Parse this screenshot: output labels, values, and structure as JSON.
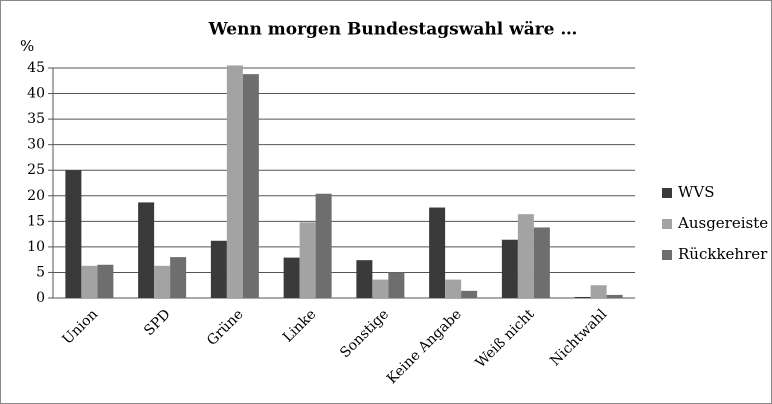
{
  "chart_data": {
    "type": "bar",
    "title": "Wenn morgen Bundestagswahl wäre …",
    "y_label": "%",
    "categories": [
      "Union",
      "SPD",
      "Grüne",
      "Linke",
      "Sonstige",
      "Keine Angabe",
      "Weiß nicht",
      "Nichtwahl"
    ],
    "series": [
      {
        "name": "WVS",
        "color": "#3a3a3a",
        "values": [
          25,
          18.7,
          11.2,
          7.9,
          7.4,
          17.7,
          11.4,
          0.2
        ]
      },
      {
        "name": "Ausgereiste",
        "color": "#a3a3a3",
        "values": [
          6.3,
          6.3,
          45.5,
          14.8,
          3.6,
          3.6,
          16.4,
          2.5
        ]
      },
      {
        "name": "Rückkehrer",
        "color": "#6e6e6e",
        "values": [
          6.5,
          8,
          43.8,
          20.4,
          5,
          1.4,
          13.8,
          0.6
        ]
      }
    ],
    "ylim": [
      0,
      45
    ],
    "yticks": [
      0,
      5,
      10,
      15,
      20,
      25,
      30,
      35,
      40,
      45
    ],
    "grid": true,
    "legend": "right"
  }
}
